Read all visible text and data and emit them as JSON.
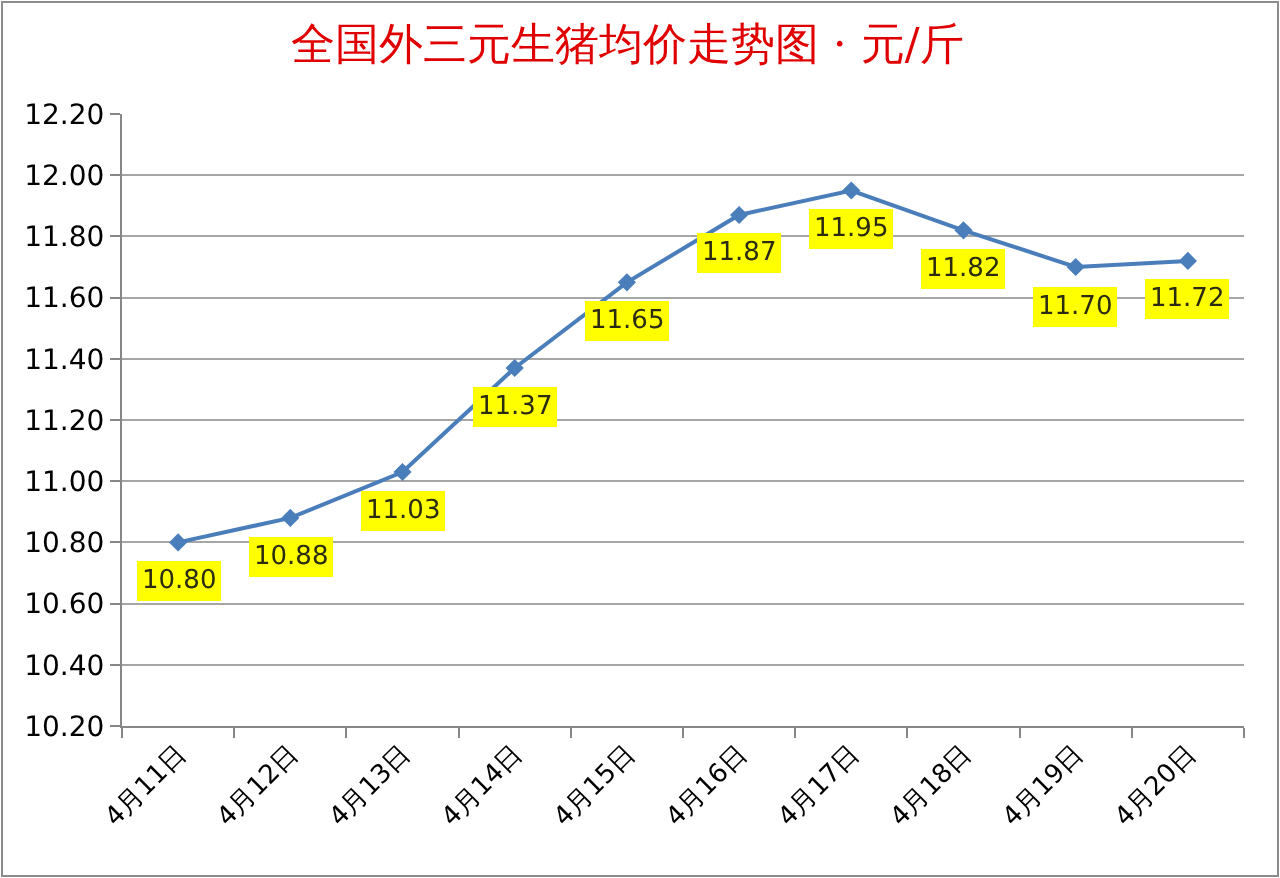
{
  "chart_data": {
    "type": "line",
    "title": "全国外三元生猪均价走势图 · 元/斤",
    "categories": [
      "4月11日",
      "4月12日",
      "4月13日",
      "4月14日",
      "4月15日",
      "4月16日",
      "4月17日",
      "4月18日",
      "4月19日",
      "4月20日"
    ],
    "series": [
      {
        "color": "#4a7ebb",
        "values": [
          10.8,
          10.88,
          11.03,
          11.37,
          11.65,
          11.87,
          11.95,
          11.82,
          11.7,
          11.72
        ],
        "value_labels": [
          "10.80",
          "10.88",
          "11.03",
          "11.37",
          "11.65",
          "11.87",
          "11.95",
          "11.82",
          "11.70",
          "11.72"
        ]
      }
    ],
    "ylim": [
      10.2,
      12.2
    ],
    "yticks": [
      {
        "value": 10.2,
        "label": "10.20"
      },
      {
        "value": 10.4,
        "label": "10.40"
      },
      {
        "value": 10.6,
        "label": "10.60"
      },
      {
        "value": 10.8,
        "label": "10.80"
      },
      {
        "value": 11.0,
        "label": "11.00"
      },
      {
        "value": 11.2,
        "label": "11.20"
      },
      {
        "value": 11.4,
        "label": "11.40"
      },
      {
        "value": 11.6,
        "label": "11.60"
      },
      {
        "value": 11.8,
        "label": "11.80"
      },
      {
        "value": 12.0,
        "label": "12.00"
      },
      {
        "value": 12.2,
        "label": "12.20"
      }
    ],
    "grid": "y",
    "marker": "diamond",
    "line_style": "solid"
  }
}
